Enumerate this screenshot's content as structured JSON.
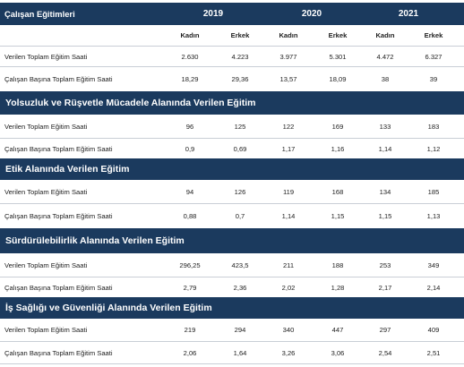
{
  "header": {
    "title": "Çalışan Eğitimleri",
    "years": [
      "2019",
      "2020",
      "2021"
    ],
    "genders": [
      "Kadın",
      "Erkek",
      "Kadın",
      "Erkek",
      "Kadın",
      "Erkek"
    ]
  },
  "summary_rows": [
    {
      "label": "Verilen Toplam Eğitim Saati",
      "values": [
        "2.630",
        "4.223",
        "3.977",
        "5.301",
        "4.472",
        "6.327"
      ]
    },
    {
      "label": "Çalışan Başına Toplam Eğitim Saati",
      "values": [
        "18,29",
        "29,36",
        "13,57",
        "18,09",
        "38",
        "39"
      ]
    }
  ],
  "sections": [
    {
      "title": "Yolsuzluk ve Rüşvetle Mücadele Alanında Verilen Eğitim",
      "rows": [
        {
          "label": "Verilen Toplam Eğitim Saati",
          "values": [
            "96",
            "125",
            "122",
            "169",
            "133",
            "183"
          ]
        },
        {
          "label": "Çalışan Başına Toplam Eğitim Saati",
          "values": [
            "0,9",
            "0,69",
            "1,17",
            "1,16",
            "1,14",
            "1,12"
          ]
        }
      ]
    },
    {
      "title": "Etik Alanında Verilen Eğitim",
      "rows": [
        {
          "label": "Verilen Toplam Eğitim Saati",
          "values": [
            "94",
            "126",
            "119",
            "168",
            "134",
            "185"
          ]
        },
        {
          "label": "Çalışan Başına Toplam Eğitim Saati",
          "values": [
            "0,88",
            "0,7",
            "1,14",
            "1,15",
            "1,15",
            "1,13"
          ]
        }
      ]
    },
    {
      "title": "Sürdürülebilirlik Alanında Verilen Eğitim",
      "rows": [
        {
          "label": "Verilen Toplam Eğitim Saati",
          "values": [
            "296,25",
            "423,5",
            "211",
            "188",
            "253",
            "349"
          ]
        },
        {
          "label": "Çalışan Başına Toplam Eğitim Saati",
          "values": [
            "2,79",
            "2,36",
            "2,02",
            "1,28",
            "2,17",
            "2,14"
          ]
        }
      ]
    },
    {
      "title": "İş Sağlığı ve Güvenliği Alanında Verilen Eğitim",
      "rows": [
        {
          "label": "Verilen Toplam Eğitim Saati",
          "values": [
            "219",
            "294",
            "340",
            "447",
            "297",
            "409"
          ]
        },
        {
          "label": "Çalışan Başına Toplam Eğitim Saati",
          "values": [
            "2,06",
            "1,64",
            "3,26",
            "3,06",
            "2,54",
            "2,51"
          ]
        }
      ]
    }
  ],
  "colors": {
    "header_bg": "#1b3a5e",
    "header_text": "#ffffff",
    "row_separator": "#c9ced6"
  }
}
